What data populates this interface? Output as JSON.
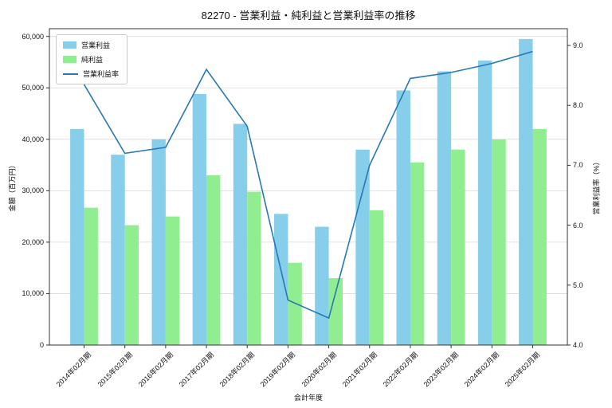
{
  "chart_data": {
    "type": "bar+line",
    "title": "82270 - 営業利益・純利益と営業利益率の推移",
    "categories": [
      "2014年02月期",
      "2015年02月期",
      "2016年02月期",
      "2017年02月期",
      "2018年02月期",
      "2019年02月期",
      "2020年02月期",
      "2021年02月期",
      "2022年02月期",
      "2023年02月期",
      "2024年02月期",
      "2025年02月期"
    ],
    "series": [
      {
        "name": "営業利益",
        "type": "bar",
        "axis": "left",
        "color": "#87ceeb",
        "values": [
          42000,
          37000,
          40000,
          48800,
          43000,
          25500,
          23000,
          38000,
          49500,
          53200,
          55300,
          59500
        ]
      },
      {
        "name": "純利益",
        "type": "bar",
        "axis": "left",
        "color": "#90ee90",
        "values": [
          26700,
          23300,
          25000,
          33000,
          29800,
          16000,
          13000,
          26200,
          35500,
          38000,
          40000,
          42000
        ]
      },
      {
        "name": "営業利益率",
        "type": "line",
        "axis": "right",
        "color": "#2878b5",
        "values": [
          8.35,
          7.2,
          7.3,
          8.6,
          7.65,
          4.75,
          4.45,
          7.0,
          8.45,
          8.55,
          8.7,
          8.9
        ]
      }
    ],
    "xlabel": "会計年度",
    "left_axis": {
      "label": "金額（百万円）",
      "min": 0,
      "max": 61500,
      "ticks": [
        0,
        10000,
        20000,
        30000,
        40000,
        50000,
        60000
      ]
    },
    "right_axis": {
      "label": "営業利益率（%）",
      "min": 4.0,
      "max": 9.28,
      "ticks": [
        4.0,
        5.0,
        6.0,
        7.0,
        8.0,
        9.0
      ]
    },
    "grid": true,
    "legend_position": "upper left",
    "plot_border_color": "#333333",
    "grid_color": "#d9d9d9"
  }
}
